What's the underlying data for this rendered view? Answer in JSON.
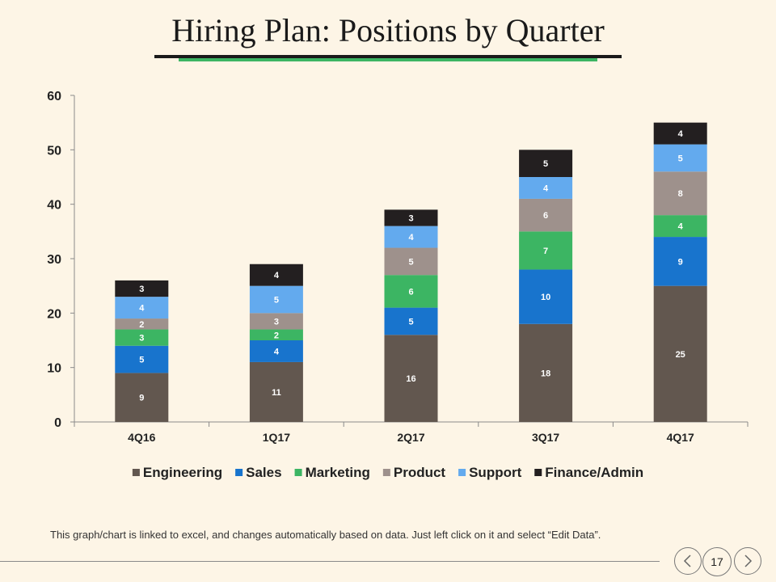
{
  "slide": {
    "title": "Hiring Plan: Positions by Quarter",
    "note": "This graph/chart is linked to excel, and changes automatically  based on data. Just left click on it and select “Edit Data”.",
    "page_number": "17",
    "prev_icon": "chevron-left-icon",
    "next_icon": "chevron-right-icon",
    "accent_color": "#3cb563"
  },
  "chart_data": {
    "type": "bar",
    "stacked": true,
    "categories": [
      "4Q16",
      "1Q17",
      "2Q17",
      "3Q17",
      "4Q17"
    ],
    "series": [
      {
        "name": "Engineering",
        "color": "#62574f",
        "values": [
          9,
          11,
          16,
          18,
          25
        ]
      },
      {
        "name": "Sales",
        "color": "#1874cd",
        "values": [
          5,
          4,
          5,
          10,
          9
        ]
      },
      {
        "name": "Marketing",
        "color": "#3cb563",
        "values": [
          3,
          2,
          6,
          7,
          4
        ]
      },
      {
        "name": "Product",
        "color": "#9e918c",
        "values": [
          2,
          3,
          5,
          6,
          8
        ]
      },
      {
        "name": "Support",
        "color": "#63aaee",
        "values": [
          4,
          5,
          4,
          4,
          5
        ]
      },
      {
        "name": "Finance/Admin",
        "color": "#231f20",
        "values": [
          3,
          4,
          3,
          5,
          4
        ]
      }
    ],
    "ylim": [
      0,
      60
    ],
    "yticks": [
      0,
      10,
      20,
      30,
      40,
      50,
      60
    ],
    "legend": "bottom",
    "grid": false
  }
}
